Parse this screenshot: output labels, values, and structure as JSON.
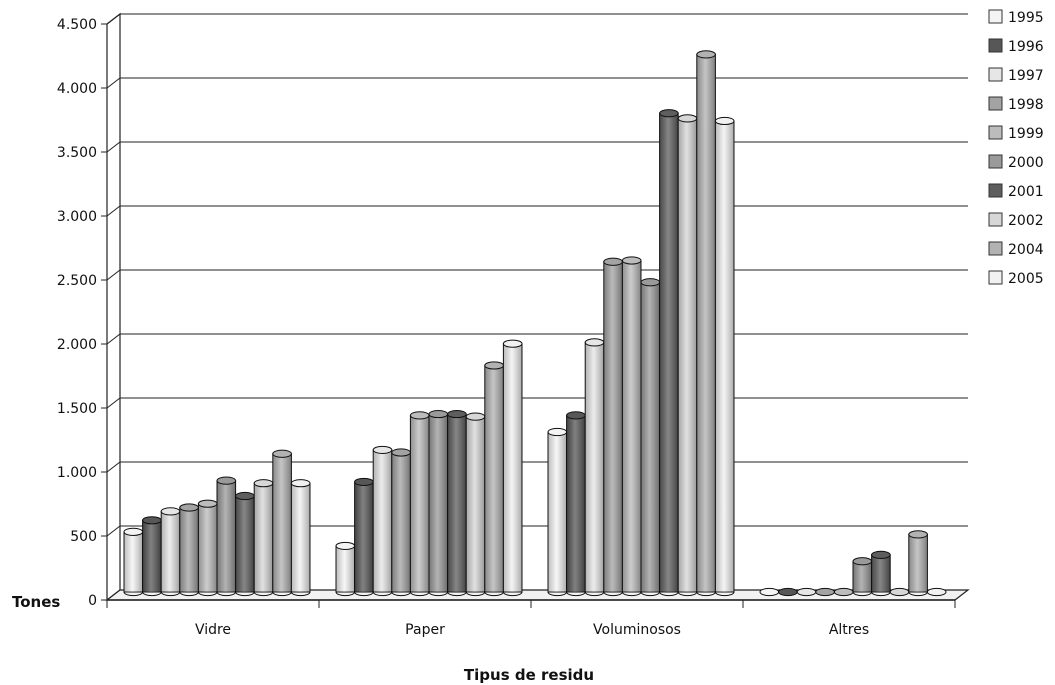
{
  "chart_data": {
    "type": "bar",
    "style": "3d-cylinder",
    "title": "",
    "xlabel": "Tipus de residu",
    "ylabel": "Tones",
    "ylim": [
      0,
      4500
    ],
    "yticks": [
      0,
      500,
      1000,
      1500,
      2000,
      2500,
      3000,
      3500,
      4000,
      4500
    ],
    "ytick_labels": [
      "0",
      "500",
      "1.000",
      "1.500",
      "2.000",
      "2.500",
      "3.000",
      "3.500",
      "4.000",
      "4.500"
    ],
    "grid": true,
    "legend_position": "right",
    "categories": [
      "Vidre",
      "Paper",
      "Voluminosos",
      "Altres"
    ],
    "series": [
      {
        "name": "1995",
        "color": "#f4f4f4",
        "values": [
          470,
          360,
          1250,
          0
        ]
      },
      {
        "name": "1996",
        "color": "#575757",
        "values": [
          560,
          860,
          1380,
          0
        ]
      },
      {
        "name": "1997",
        "color": "#e6e6e6",
        "values": [
          630,
          1110,
          1950,
          0
        ]
      },
      {
        "name": "1998",
        "color": "#a3a3a3",
        "values": [
          660,
          1090,
          2580,
          0
        ]
      },
      {
        "name": "1999",
        "color": "#bcbcbc",
        "values": [
          690,
          1380,
          2590,
          0
        ]
      },
      {
        "name": "2000",
        "color": "#9a9a9a",
        "values": [
          870,
          1390,
          2420,
          240
        ]
      },
      {
        "name": "2001",
        "color": "#5e5e5e",
        "values": [
          750,
          1390,
          3740,
          290
        ]
      },
      {
        "name": "2002",
        "color": "#d7d7d7",
        "values": [
          850,
          1370,
          3700,
          0
        ]
      },
      {
        "name": "2004",
        "color": "#b2b2b2",
        "values": [
          1080,
          1770,
          4200,
          450
        ]
      },
      {
        "name": "2005",
        "color": "#f1f1f1",
        "values": [
          850,
          1940,
          3680,
          0
        ]
      }
    ]
  }
}
